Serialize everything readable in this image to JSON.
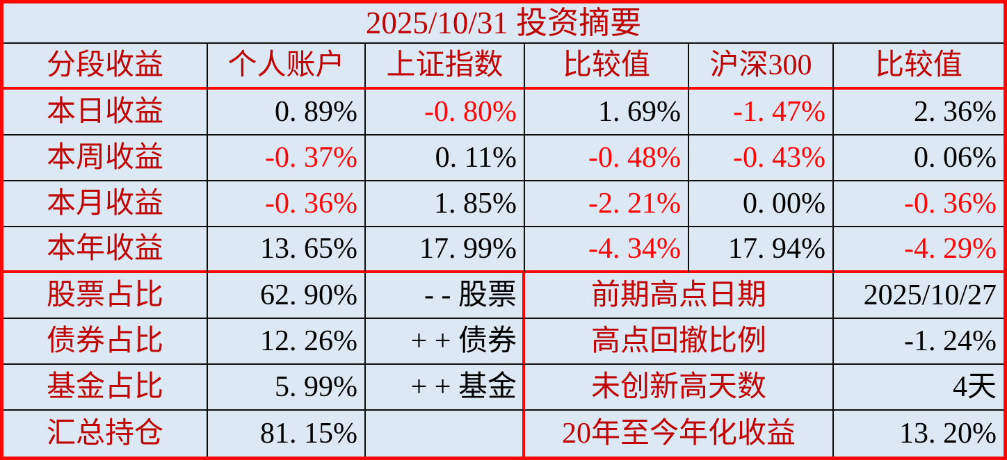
{
  "title": "2025/10/31 投资摘要",
  "colors": {
    "background": "#dce8f4",
    "label_dark_red": "#c00404",
    "negative_red": "#fe0606",
    "positive_black": "#000000",
    "border_red": "#fb0505",
    "gridline_black": "#0d0d0d"
  },
  "performance": {
    "headers": [
      "分段收益",
      "个人账户",
      "上证指数",
      "比较值",
      "沪深300",
      "比较值"
    ],
    "rows": [
      {
        "label": "本日收益",
        "personal": "0. 89%",
        "shanghai": "-0. 80%",
        "diff1": "1. 69%",
        "hs300": "-1. 47%",
        "diff2": "2. 36%"
      },
      {
        "label": "本周收益",
        "personal": "-0. 37%",
        "shanghai": "0. 11%",
        "diff1": "-0. 48%",
        "hs300": "-0. 43%",
        "diff2": "0. 06%"
      },
      {
        "label": "本月收益",
        "personal": "-0. 36%",
        "shanghai": "1. 85%",
        "diff1": "-2. 21%",
        "hs300": "0. 00%",
        "diff2": "-0. 36%"
      },
      {
        "label": "本年收益",
        "personal": "13. 65%",
        "shanghai": "17. 99%",
        "diff1": "-4. 34%",
        "hs300": "17. 94%",
        "diff2": "-4. 29%"
      }
    ]
  },
  "allocation": {
    "rows": [
      {
        "label": "股票占比",
        "value": "62. 90%",
        "tag": "- - 股票"
      },
      {
        "label": "债券占比",
        "value": "12. 26%",
        "tag": "+ + 债券"
      },
      {
        "label": "基金占比",
        "value": "5. 99%",
        "tag": "+ + 基金"
      },
      {
        "label": "汇总持仓",
        "value": "81. 15%",
        "tag": ""
      }
    ]
  },
  "summary": {
    "rows": [
      {
        "label": "前期高点日期",
        "value": "2025/10/27"
      },
      {
        "label": "高点回撤比例",
        "value": "-1. 24%"
      },
      {
        "label": "未创新高天数",
        "value": "4天"
      },
      {
        "label": "20年至今年化收益",
        "value": "13. 20%"
      }
    ]
  }
}
